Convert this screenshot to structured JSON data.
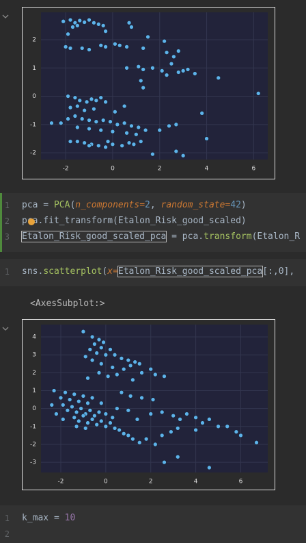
{
  "chart_data": [
    {
      "type": "scatter",
      "color": "#5db3ea",
      "x": [
        -2.1,
        -1.8,
        -1.6,
        -1.4,
        -1.2,
        -1.0,
        -0.8,
        -0.6,
        -0.4,
        -0.3,
        -1.9,
        -1.7,
        -1.5,
        -2.0,
        -1.8,
        -1.3,
        -1.0,
        -0.5,
        -0.3,
        0.1,
        0.3,
        0.6,
        0.7,
        0.8,
        1.3,
        1.5,
        2.2,
        2.3,
        2.6,
        2.8,
        0.6,
        1.1,
        1.3,
        1.7,
        2.1,
        2.3,
        2.5,
        2.8,
        3.2,
        3.5,
        3.0,
        4.5,
        6.2,
        1.3,
        1.2,
        -1.9,
        -1.6,
        -1.4,
        -1.1,
        -0.9,
        -0.7,
        -0.5,
        -0.3,
        0.5,
        -1.8,
        -1.5,
        -1.2,
        -0.8,
        0.1,
        -2.6,
        -2.2,
        -1.9,
        -1.6,
        -1.3,
        -1.0,
        -0.7,
        -0.4,
        -0.1,
        0.2,
        0.5,
        0.8,
        1.1,
        1.4,
        -1.5,
        -1.0,
        -0.5,
        0.0,
        0.6,
        1.0,
        2.0,
        2.4,
        2.7,
        3.8,
        4.0,
        -1.8,
        -1.5,
        -1.2,
        -0.9,
        -0.6,
        -0.3,
        0.0,
        0.4,
        0.9,
        1.2,
        1.7,
        2.7,
        3.0,
        -0.2,
        -1.0,
        0.7
      ],
      "values": [
        2.65,
        2.7,
        2.6,
        2.68,
        2.62,
        2.7,
        2.6,
        2.55,
        2.5,
        2.3,
        2.2,
        2.45,
        2.5,
        1.75,
        1.7,
        1.7,
        1.65,
        1.8,
        1.75,
        1.85,
        1.8,
        1.75,
        2.6,
        2.45,
        1.7,
        2.1,
        1.95,
        1.55,
        1.4,
        1.6,
        1.0,
        1.05,
        0.95,
        1.0,
        0.9,
        0.75,
        1.15,
        0.85,
        0.95,
        0.8,
        0.9,
        0.65,
        0.1,
        0.3,
        0.55,
        0.0,
        -0.05,
        -0.15,
        -0.2,
        -0.1,
        -0.15,
        -0.05,
        -0.2,
        -0.35,
        -0.4,
        -0.35,
        -0.5,
        -0.45,
        -0.55,
        -0.95,
        -0.95,
        -0.8,
        -0.7,
        -0.8,
        -0.85,
        -0.9,
        -0.85,
        -0.9,
        -1.0,
        -0.95,
        -1.05,
        -1.1,
        -1.2,
        -1.1,
        -1.15,
        -1.2,
        -1.25,
        -1.3,
        -1.35,
        -1.2,
        -1.05,
        -1.0,
        -0.6,
        -1.5,
        -1.6,
        -1.6,
        -1.65,
        -1.7,
        -1.75,
        -1.8,
        -1.7,
        -1.75,
        -1.7,
        -1.6,
        -2.05,
        -1.95,
        -2.1,
        -1.6,
        -1.75,
        -1.65
      ],
      "xlim": [
        -3.05,
        6.6
      ],
      "ylim": [
        -2.24,
        2.97
      ],
      "xticks": [
        -2,
        0,
        2,
        4,
        6
      ],
      "yticks": [
        -2,
        -1,
        0,
        1,
        2
      ],
      "grid": true
    },
    {
      "type": "scatter",
      "color": "#5db3ea",
      "x": [
        -1.0,
        -0.6,
        -0.3,
        -0.1,
        -0.5,
        -0.2,
        0.2,
        -0.7,
        -0.4,
        0.0,
        0.4,
        0.7,
        1.0,
        1.3,
        1.5,
        -0.9,
        -0.6,
        -0.2,
        0.3,
        0.8,
        1.1,
        1.6,
        2.0,
        2.2,
        2.6,
        0.5,
        0.1,
        1.2,
        -0.8,
        -0.3,
        -2.3,
        -2.0,
        -1.8,
        -1.6,
        -1.4,
        -1.2,
        -1.0,
        -0.8,
        -1.9,
        -1.7,
        -1.5,
        -1.3,
        -1.1,
        -0.9,
        -0.7,
        -0.5,
        -0.3,
        -1.4,
        -1.2,
        -1.0,
        -0.8,
        -0.6,
        -0.4,
        -0.2,
        0.0,
        0.2,
        0.4,
        0.6,
        0.8,
        1.0,
        -2.4,
        -2.2,
        -1.9,
        -0.6,
        -0.2,
        0.0,
        0.3,
        0.5,
        1.2,
        1.5,
        1.8,
        2.2,
        2.5,
        1.4,
        2.0,
        2.5,
        3.0,
        3.3,
        3.6,
        4.0,
        4.3,
        4.6,
        5.0,
        5.4,
        5.8,
        6.0,
        6.7,
        4.6,
        3.2,
        2.6,
        0.7,
        1.1,
        1.6,
        2.1,
        1.0,
        3.2,
        2.9,
        4.0,
        -1.3,
        -0.9
      ],
      "values": [
        4.3,
        4.0,
        3.85,
        3.7,
        3.6,
        3.4,
        3.3,
        3.3,
        3.1,
        3.0,
        3.0,
        2.8,
        2.7,
        2.6,
        2.5,
        2.9,
        2.7,
        2.5,
        2.3,
        2.2,
        2.4,
        2.0,
        2.2,
        1.9,
        1.8,
        1.9,
        1.8,
        1.6,
        1.7,
        2.0,
        1.0,
        0.6,
        0.9,
        0.5,
        0.8,
        0.4,
        0.7,
        0.3,
        0.2,
        -0.1,
        0.1,
        -0.2,
        0.0,
        -0.3,
        -0.1,
        -0.4,
        -0.2,
        -0.5,
        -0.7,
        -0.4,
        -0.8,
        -0.6,
        -0.9,
        -0.7,
        -1.0,
        -0.8,
        -1.1,
        -1.2,
        -1.4,
        -1.5,
        0.2,
        -0.3,
        -0.6,
        0.6,
        0.3,
        -0.3,
        -0.5,
        0.0,
        -1.7,
        -1.9,
        -1.7,
        -2.0,
        -1.5,
        -0.6,
        -0.3,
        -0.2,
        -0.4,
        -0.6,
        -0.3,
        -0.5,
        -0.8,
        -0.6,
        -1.0,
        -1.0,
        -1.3,
        -1.5,
        -1.9,
        -3.3,
        -2.7,
        -3.0,
        0.9,
        0.7,
        0.6,
        0.5,
        -0.1,
        -1.1,
        -1.3,
        -1.2,
        -1.0,
        -1.1
      ],
      "xlim": [
        -2.88,
        7.2
      ],
      "ylim": [
        -3.57,
        4.69
      ],
      "xticks": [
        -2,
        0,
        2,
        4,
        6
      ],
      "yticks": [
        -3,
        -2,
        -1,
        0,
        1,
        2,
        3,
        4
      ],
      "grid": true
    }
  ],
  "cells": [
    {
      "line_numbers": [
        1,
        2,
        3
      ],
      "lines": [
        [
          {
            "text": "pca = "
          },
          {
            "text": "PCA",
            "color": "#a5c261"
          },
          {
            "text": "("
          },
          {
            "text": "n_components",
            "color": "#cc7832",
            "italic": true
          },
          {
            "text": "=",
            "color": "#cc7832"
          },
          {
            "text": "2",
            "color": "#6897bb"
          },
          {
            "text": ", "
          },
          {
            "text": "random_state",
            "color": "#cc7832",
            "italic": true
          },
          {
            "text": "=",
            "color": "#cc7832"
          },
          {
            "text": "42",
            "color": "#6897bb"
          },
          {
            "text": ")"
          }
        ],
        [
          {
            "text": "pca.fit_transform(Etalon_Risk_good_scaled)"
          }
        ],
        [
          {
            "text": "Etalon_Risk_good_scaled_pca",
            "boxed": true
          },
          {
            "text": " = pca."
          },
          {
            "text": "transform",
            "color": "#a5c261"
          },
          {
            "text": "(Etalon_R"
          }
        ]
      ]
    },
    {
      "line_numbers": [
        1
      ],
      "lines": [
        [
          {
            "text": "sns."
          },
          {
            "text": "scatterplot",
            "color": "#a5c261"
          },
          {
            "text": "("
          },
          {
            "text": "x",
            "color": "#cc7832",
            "italic": true
          },
          {
            "text": "=",
            "color": "#cc7832"
          },
          {
            "text": "Etalon_Risk_good_scaled_pca",
            "boxed": true
          },
          {
            "text": "[:,0], "
          }
        ]
      ]
    },
    {
      "line_numbers": [
        1,
        2
      ],
      "lines": [
        [
          {
            "text": "k_max = "
          },
          {
            "text": "10",
            "color": "#9876aa"
          }
        ],
        []
      ]
    }
  ],
  "output_text": "<AxesSubplot:>"
}
